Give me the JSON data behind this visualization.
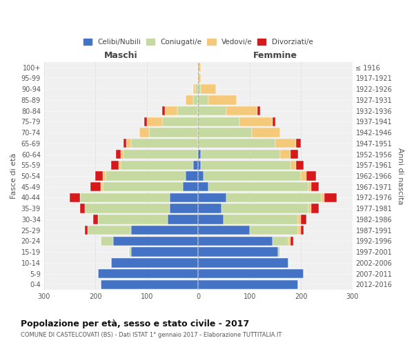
{
  "age_groups": [
    "0-4",
    "5-9",
    "10-14",
    "15-19",
    "20-24",
    "25-29",
    "30-34",
    "35-39",
    "40-44",
    "45-49",
    "50-54",
    "55-59",
    "60-64",
    "65-69",
    "70-74",
    "75-79",
    "80-84",
    "85-89",
    "90-94",
    "95-99",
    "100+"
  ],
  "birth_years": [
    "2012-2016",
    "2007-2011",
    "2002-2006",
    "1997-2001",
    "1992-1996",
    "1987-1991",
    "1982-1986",
    "1977-1981",
    "1972-1976",
    "1967-1971",
    "1962-1966",
    "1957-1961",
    "1952-1956",
    "1947-1951",
    "1942-1946",
    "1937-1941",
    "1932-1936",
    "1927-1931",
    "1922-1926",
    "1917-1921",
    "≤ 1916"
  ],
  "colors": {
    "celibi": "#4472c4",
    "coniugati": "#c5d9a0",
    "vedovi": "#f5c97a",
    "divorziati": "#d7191c",
    "background": "#f0f0f0",
    "gridline": "#cccccc"
  },
  "maschi": {
    "celibi": [
      190,
      195,
      170,
      130,
      165,
      130,
      60,
      55,
      55,
      30,
      25,
      10,
      0,
      0,
      0,
      0,
      0,
      0,
      0,
      0,
      0
    ],
    "coniugati": [
      0,
      0,
      0,
      5,
      25,
      85,
      135,
      165,
      175,
      155,
      155,
      140,
      145,
      130,
      95,
      70,
      40,
      10,
      5,
      0,
      0
    ],
    "vedovi": [
      0,
      0,
      0,
      0,
      0,
      0,
      0,
      0,
      0,
      5,
      5,
      5,
      5,
      10,
      20,
      30,
      25,
      15,
      5,
      0,
      0
    ],
    "divorziati": [
      0,
      0,
      0,
      0,
      0,
      5,
      10,
      10,
      20,
      20,
      15,
      15,
      10,
      5,
      0,
      5,
      5,
      0,
      0,
      0,
      0
    ]
  },
  "femmine": {
    "celibi": [
      195,
      205,
      175,
      155,
      145,
      100,
      50,
      45,
      55,
      20,
      10,
      5,
      5,
      0,
      0,
      0,
      0,
      0,
      0,
      0,
      0
    ],
    "coniugati": [
      0,
      0,
      0,
      5,
      30,
      95,
      145,
      170,
      185,
      195,
      190,
      175,
      155,
      150,
      105,
      80,
      55,
      20,
      5,
      0,
      0
    ],
    "vedovi": [
      0,
      0,
      0,
      0,
      5,
      5,
      5,
      5,
      5,
      5,
      10,
      10,
      20,
      40,
      55,
      65,
      60,
      55,
      30,
      5,
      5
    ],
    "divorziati": [
      0,
      0,
      0,
      0,
      5,
      5,
      10,
      15,
      25,
      15,
      20,
      15,
      15,
      10,
      0,
      5,
      5,
      0,
      0,
      0,
      0
    ]
  },
  "xlim": 300,
  "title": "Popolazione per età, sesso e stato civile - 2017",
  "subtitle": "COMUNE DI CASTELCOVATI (BS) - Dati ISTAT 1° gennaio 2017 - Elaborazione TUTTITALIA.IT",
  "ylabel_left": "Fasce di età",
  "ylabel_right": "Anni di nascita",
  "xlabel_maschi": "Maschi",
  "xlabel_femmine": "Femmine",
  "legend_labels": [
    "Celibi/Nubili",
    "Coniugati/e",
    "Vedovi/e",
    "Divorziati/e"
  ]
}
